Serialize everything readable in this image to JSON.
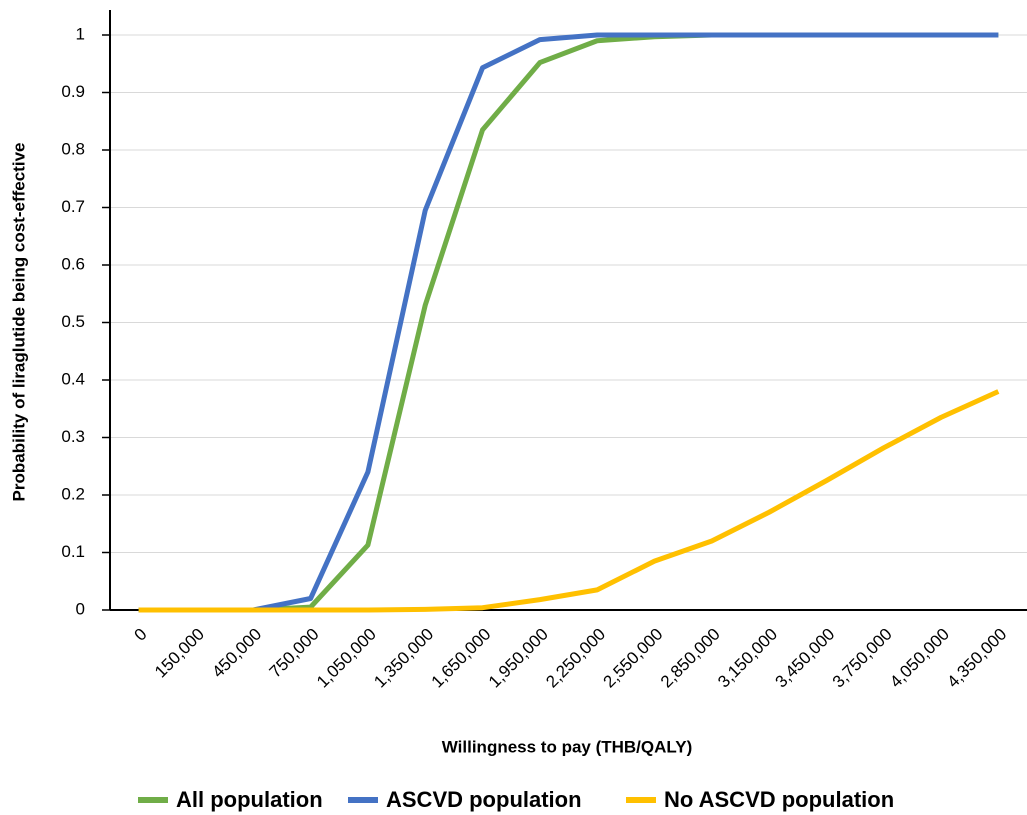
{
  "chart_data": {
    "type": "line",
    "x_label": "Willingness to pay (THB/QALY)",
    "y_label": "Probability of liraglutide being cost-effective",
    "categories": [
      "0",
      "150,000",
      "450,000",
      "750,000",
      "1,050,000",
      "1,350,000",
      "1,650,000",
      "1,950,000",
      "2,250,000",
      "2,550,000",
      "2,850,000",
      "3,150,000",
      "3,450,000",
      "3,750,000",
      "4,050,000",
      "4,350,000"
    ],
    "series": [
      {
        "name": "All population",
        "color": "#70ad47",
        "values": [
          0,
          0,
          0,
          0.005,
          0.113,
          0.53,
          0.835,
          0.952,
          0.99,
          0.997,
          1,
          1,
          1,
          1,
          1,
          1
        ]
      },
      {
        "name": "ASCVD population",
        "color": "#4472c4",
        "values": [
          0,
          0,
          0,
          0.02,
          0.24,
          0.695,
          0.943,
          0.992,
          1,
          1,
          1,
          1,
          1,
          1,
          1,
          1
        ]
      },
      {
        "name": "No ASCVD population",
        "color": "#ffc000",
        "values": [
          0,
          0,
          0,
          0,
          0,
          0.001,
          0.004,
          0.018,
          0.035,
          0.085,
          0.12,
          0.17,
          0.225,
          0.282,
          0.335,
          0.38
        ]
      }
    ],
    "ylim": [
      0,
      1
    ],
    "yticks": [
      0,
      0.1,
      0.2,
      0.3,
      0.4,
      0.5,
      0.6,
      0.7,
      0.8,
      0.9,
      1
    ],
    "grid": true,
    "legend": "bottom"
  }
}
